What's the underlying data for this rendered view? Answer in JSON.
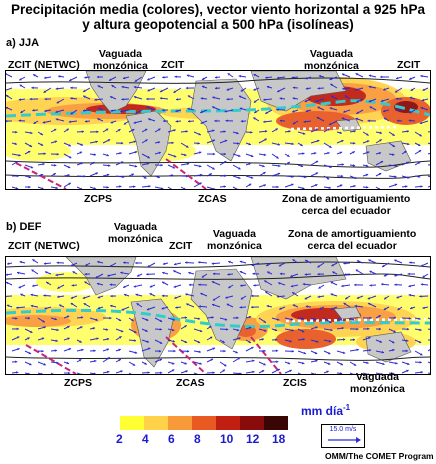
{
  "title_line1": "Precipitación media (colores), vector viento horizontal a 925 hPa",
  "title_line2": "y altura geopotencial a 500 hPa (isolíneas)",
  "panels": {
    "jja": {
      "label": "a) JJA",
      "labels": {
        "zcit_netwc": "ZCIT (NETWC)",
        "vaguada_l1": "Vaguada",
        "vaguada_l2": "monzónica",
        "zcit_a": "ZCIT",
        "vaguada2_l1": "Vaguada",
        "vaguada2_l2": "monzónica",
        "zcit_b": "ZCIT",
        "zcps": "ZCPS",
        "zcas": "ZCAS",
        "zona_l1": "Zona de amortiguamiento",
        "zona_l2": "cerca del ecuador"
      }
    },
    "def": {
      "label": "b) DEF",
      "labels": {
        "zcit_netwc": "ZCIT (NETWC)",
        "vaguada_l1": "Vaguada",
        "vaguada_l2": "monzónica",
        "zcit": "ZCIT",
        "vaguada2_l1": "Vaguada",
        "vaguada2_l2": "monzónica",
        "zona_l1": "Zona de amortiguamiento",
        "zona_l2": "cerca del ecuador",
        "zcps": "ZCPS",
        "zcas": "ZCAS",
        "zcis": "ZCIS",
        "vaguada3_l1": "Vaguada",
        "vaguada3_l2": "monzónica"
      }
    }
  },
  "legend": {
    "units": "mm día",
    "units_exp": "-1",
    "ticks": [
      "2",
      "4",
      "6",
      "8",
      "10",
      "12",
      "18"
    ],
    "colors": [
      "#ffff33",
      "#ffd24a",
      "#f99a3a",
      "#e85a22",
      "#c01f12",
      "#8a0b0b",
      "#3a0505"
    ]
  },
  "reference_vector": "15.0 m/s",
  "credit": "OMM/The COMET Program",
  "colors": {
    "arrows": "#2b2bd6",
    "itcz_line": "#33cccc",
    "buffer_line": "#ffffff",
    "spcz_line": "#cc2277",
    "land": "#c8c8c8"
  }
}
